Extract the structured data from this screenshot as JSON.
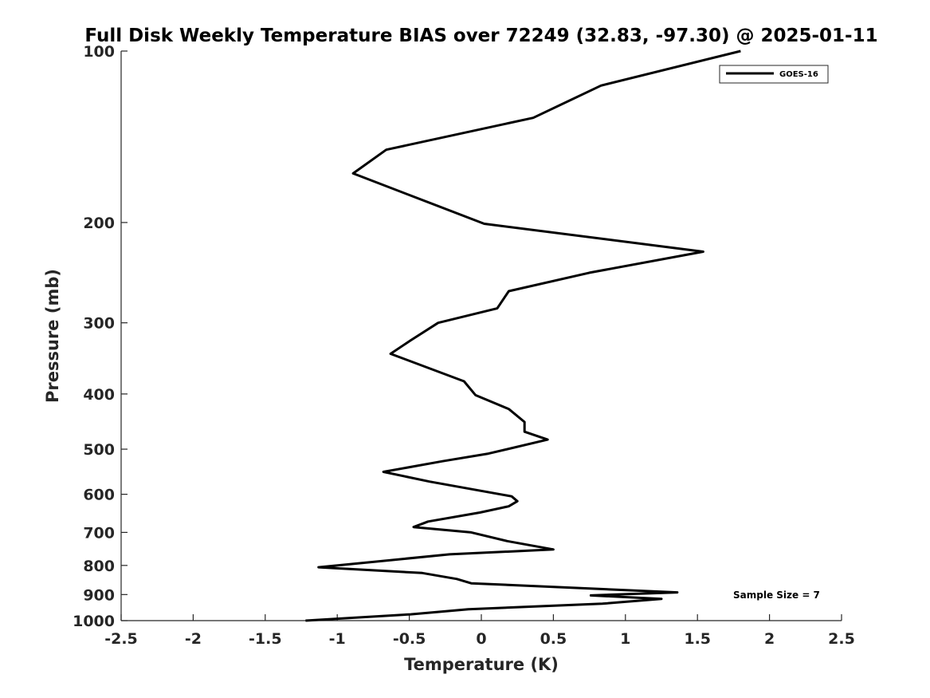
{
  "chart_data": {
    "type": "line",
    "title": "Full Disk Weekly Temperature BIAS over 72249 (32.83, -97.30) @ 2025-01-11",
    "xlabel": "Temperature (K)",
    "ylabel": "Pressure (mb)",
    "xlim": [
      -2.5,
      2.5
    ],
    "ylim": [
      100,
      1000
    ],
    "yscale": "log",
    "y_reversed": true,
    "grid": false,
    "legend_position": "top-right",
    "x_ticks": [
      "-2.5",
      "-2",
      "-1.5",
      "-1",
      "-0.5",
      "0",
      "0.5",
      "1",
      "1.5",
      "2",
      "2.5"
    ],
    "y_ticks": [
      "100",
      "200",
      "300",
      "400",
      "500",
      "600",
      "700",
      "800",
      "900",
      "1000"
    ],
    "annotation": "Sample Size = 7",
    "series": [
      {
        "name": "GOES-16",
        "color": "#000000",
        "x": [
          1.8,
          0.83,
          0.36,
          -0.66,
          -0.89,
          0.02,
          1.54,
          0.75,
          0.19,
          0.11,
          -0.3,
          -0.49,
          -0.63,
          -0.12,
          -0.04,
          0.19,
          0.3,
          0.3,
          0.46,
          0.05,
          -0.27,
          -0.68,
          -0.36,
          0.21,
          0.25,
          0.19,
          -0.01,
          -0.37,
          -0.47,
          -0.07,
          0.18,
          0.5,
          -0.22,
          -1.13,
          -0.41,
          -0.17,
          -0.07,
          1.36,
          0.76,
          1.25,
          0.84,
          -0.09,
          -0.49,
          -1.22
        ],
        "y": [
          100,
          115,
          131,
          149,
          164,
          201,
          225,
          245,
          264,
          283,
          300,
          322,
          340,
          380,
          402,
          425,
          448,
          466,
          481,
          509,
          525,
          548,
          570,
          605,
          617,
          630,
          646,
          670,
          685,
          700,
          725,
          750,
          765,
          806,
          825,
          845,
          860,
          892,
          903,
          916,
          934,
          955,
          975,
          1000
        ]
      }
    ]
  }
}
